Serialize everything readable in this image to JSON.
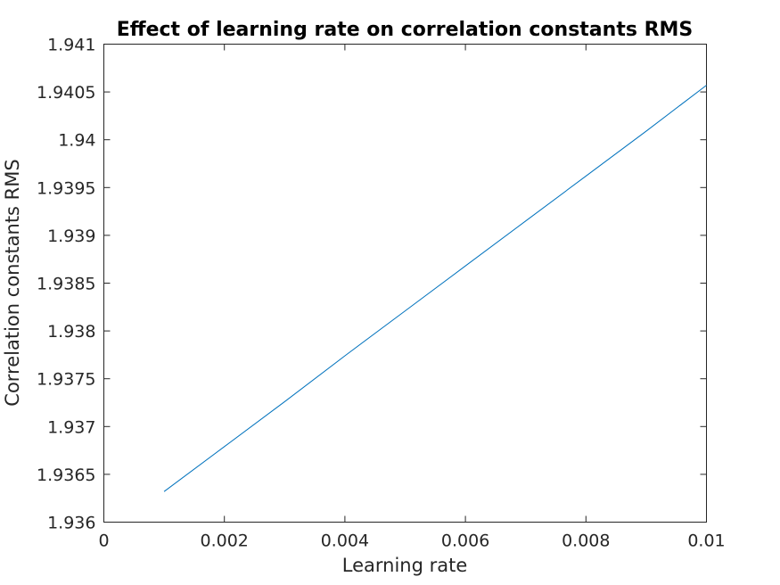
{
  "chart_data": {
    "type": "line",
    "title": "Effect of learning rate on correlation constants RMS",
    "xlabel": "Learning rate",
    "ylabel": "Correlation constants RMS",
    "xlim": [
      0,
      0.01
    ],
    "ylim": [
      1.936,
      1.941
    ],
    "x_ticks": [
      0,
      0.002,
      0.004,
      0.006,
      0.008,
      0.01
    ],
    "x_tick_labels": [
      "0",
      "0.002",
      "0.004",
      "0.006",
      "0.008",
      "0.01"
    ],
    "y_ticks": [
      1.936,
      1.9365,
      1.937,
      1.9375,
      1.938,
      1.9385,
      1.939,
      1.9395,
      1.94,
      1.9405,
      1.941
    ],
    "y_tick_labels": [
      "1.936",
      "1.9365",
      "1.937",
      "1.9375",
      "1.938",
      "1.9385",
      "1.939",
      "1.9395",
      "1.94",
      "1.9405",
      "1.941"
    ],
    "grid": false,
    "series": [
      {
        "color": "#0072bd",
        "x": [
          0.001,
          0.002,
          0.003,
          0.004,
          0.005,
          0.006,
          0.007,
          0.008,
          0.009,
          0.01
        ],
        "y": [
          1.93632,
          1.93679,
          1.93726,
          1.93774,
          1.93821,
          1.93868,
          1.93915,
          1.93962,
          1.94009,
          1.94057
        ]
      }
    ]
  }
}
